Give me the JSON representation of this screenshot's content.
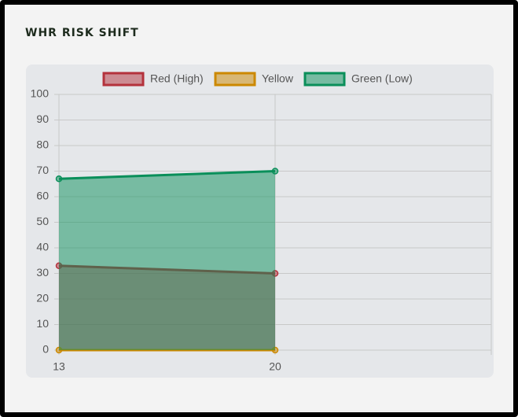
{
  "chart_data": {
    "type": "line",
    "title": "WHR RISK SHIFT",
    "categories": [
      "13",
      "20",
      null
    ],
    "series": [
      {
        "name": "Red (High)",
        "color": "#b4323c",
        "values": [
          33,
          30,
          null
        ]
      },
      {
        "name": "Yellow",
        "color": "#cc8800",
        "values": [
          0,
          0,
          null
        ]
      },
      {
        "name": "Green (Low)",
        "color": "#0a8f5a",
        "values": [
          67,
          70,
          null
        ]
      }
    ],
    "ylim": [
      0,
      100
    ],
    "yticks": [
      0,
      10,
      20,
      30,
      40,
      50,
      60,
      70,
      80,
      90,
      100
    ],
    "grid": true,
    "fill": true,
    "legend": "top"
  }
}
